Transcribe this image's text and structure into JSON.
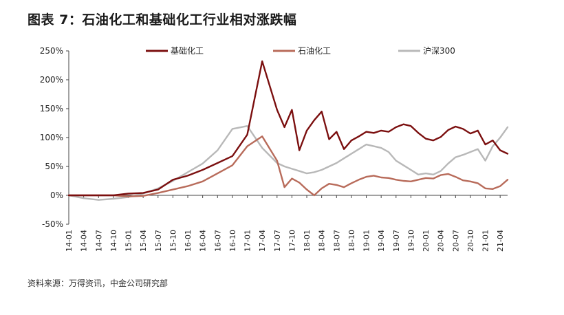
{
  "figure": {
    "title": "图表 7：石油化工和基础化工行业相对涨跌幅",
    "source": "资料来源：万得资讯，中金公司研究部"
  },
  "chart_data": {
    "type": "line",
    "ylim": [
      -50,
      250
    ],
    "yticks": [
      -50,
      0,
      50,
      100,
      150,
      200,
      250
    ],
    "ytick_labels": [
      "-50%",
      "0%",
      "50%",
      "100%",
      "150%",
      "200%",
      "250%"
    ],
    "xticks": [
      "14-01",
      "14-04",
      "14-07",
      "14-10",
      "15-01",
      "15-04",
      "15-07",
      "15-10",
      "16-01",
      "16-04",
      "16-07",
      "16-10",
      "17-01",
      "17-04",
      "17-07",
      "17-10",
      "18-01",
      "18-04",
      "18-07",
      "18-10",
      "19-01",
      "19-04",
      "19-07",
      "19-10",
      "20-01",
      "20-04",
      "20-07",
      "20-10",
      "21-01",
      "21-04"
    ],
    "grid": false,
    "legend": "top",
    "series": [
      {
        "name": "基础化工",
        "color": "#7B0F0F",
        "x": [
          0,
          1,
          2,
          3,
          4,
          5,
          6,
          7,
          8,
          9,
          10,
          11,
          12,
          13,
          14,
          14.5,
          15,
          15.5,
          16,
          16.5,
          17,
          17.5,
          18,
          18.5,
          19,
          19.5,
          20,
          20.5,
          21,
          21.5,
          22,
          22.5,
          23,
          23.5,
          24,
          24.5,
          25,
          25.5,
          26,
          26.5,
          27,
          27.5,
          28,
          28.5,
          29,
          29.5
        ],
        "values": [
          0,
          0,
          0,
          0,
          3,
          4,
          10,
          27,
          34,
          44,
          56,
          68,
          105,
          232,
          148,
          118,
          148,
          78,
          112,
          130,
          145,
          97,
          110,
          80,
          95,
          102,
          110,
          108,
          112,
          110,
          118,
          123,
          120,
          108,
          98,
          95,
          101,
          113,
          119,
          115,
          107,
          112,
          88,
          95,
          78,
          72
        ]
      },
      {
        "name": "石油化工",
        "color": "#B86B5A",
        "x": [
          0,
          1,
          2,
          3,
          4,
          5,
          6,
          7,
          8,
          9,
          10,
          11,
          12,
          13,
          14,
          14.5,
          15,
          15.5,
          16,
          16.5,
          17,
          17.5,
          18,
          18.5,
          19,
          19.5,
          20,
          20.5,
          21,
          21.5,
          22,
          22.5,
          23,
          23.5,
          24,
          24.5,
          25,
          25.5,
          26,
          26.5,
          27,
          27.5,
          28,
          28.5,
          29,
          29.5
        ],
        "values": [
          0,
          0,
          0,
          0,
          -2,
          -1,
          4,
          10,
          16,
          24,
          38,
          52,
          85,
          102,
          60,
          14,
          29,
          22,
          10,
          0,
          12,
          20,
          18,
          14,
          21,
          27,
          32,
          34,
          31,
          30,
          27,
          25,
          24,
          27,
          30,
          29,
          35,
          37,
          32,
          26,
          24,
          21,
          12,
          11,
          16,
          27
        ]
      },
      {
        "name": "沪深300",
        "color": "#B8B8B8",
        "x": [
          0,
          1,
          2,
          3,
          4,
          5,
          6,
          7,
          8,
          9,
          10,
          11,
          12,
          13,
          14,
          14.5,
          15,
          15.5,
          16,
          16.5,
          17,
          17.5,
          18,
          18.5,
          19,
          19.5,
          20,
          20.5,
          21,
          21.5,
          22,
          22.5,
          23,
          23.5,
          24,
          24.5,
          25,
          25.5,
          26,
          26.5,
          27,
          27.5,
          28,
          28.5,
          29,
          29.5
        ],
        "values": [
          0,
          -5,
          -8,
          -6,
          -3,
          3,
          12,
          25,
          40,
          55,
          78,
          115,
          120,
          82,
          56,
          50,
          46,
          42,
          38,
          40,
          44,
          50,
          56,
          64,
          72,
          80,
          88,
          85,
          82,
          75,
          60,
          52,
          44,
          36,
          38,
          36,
          42,
          55,
          66,
          70,
          75,
          80,
          60,
          85,
          100,
          118
        ]
      }
    ]
  }
}
